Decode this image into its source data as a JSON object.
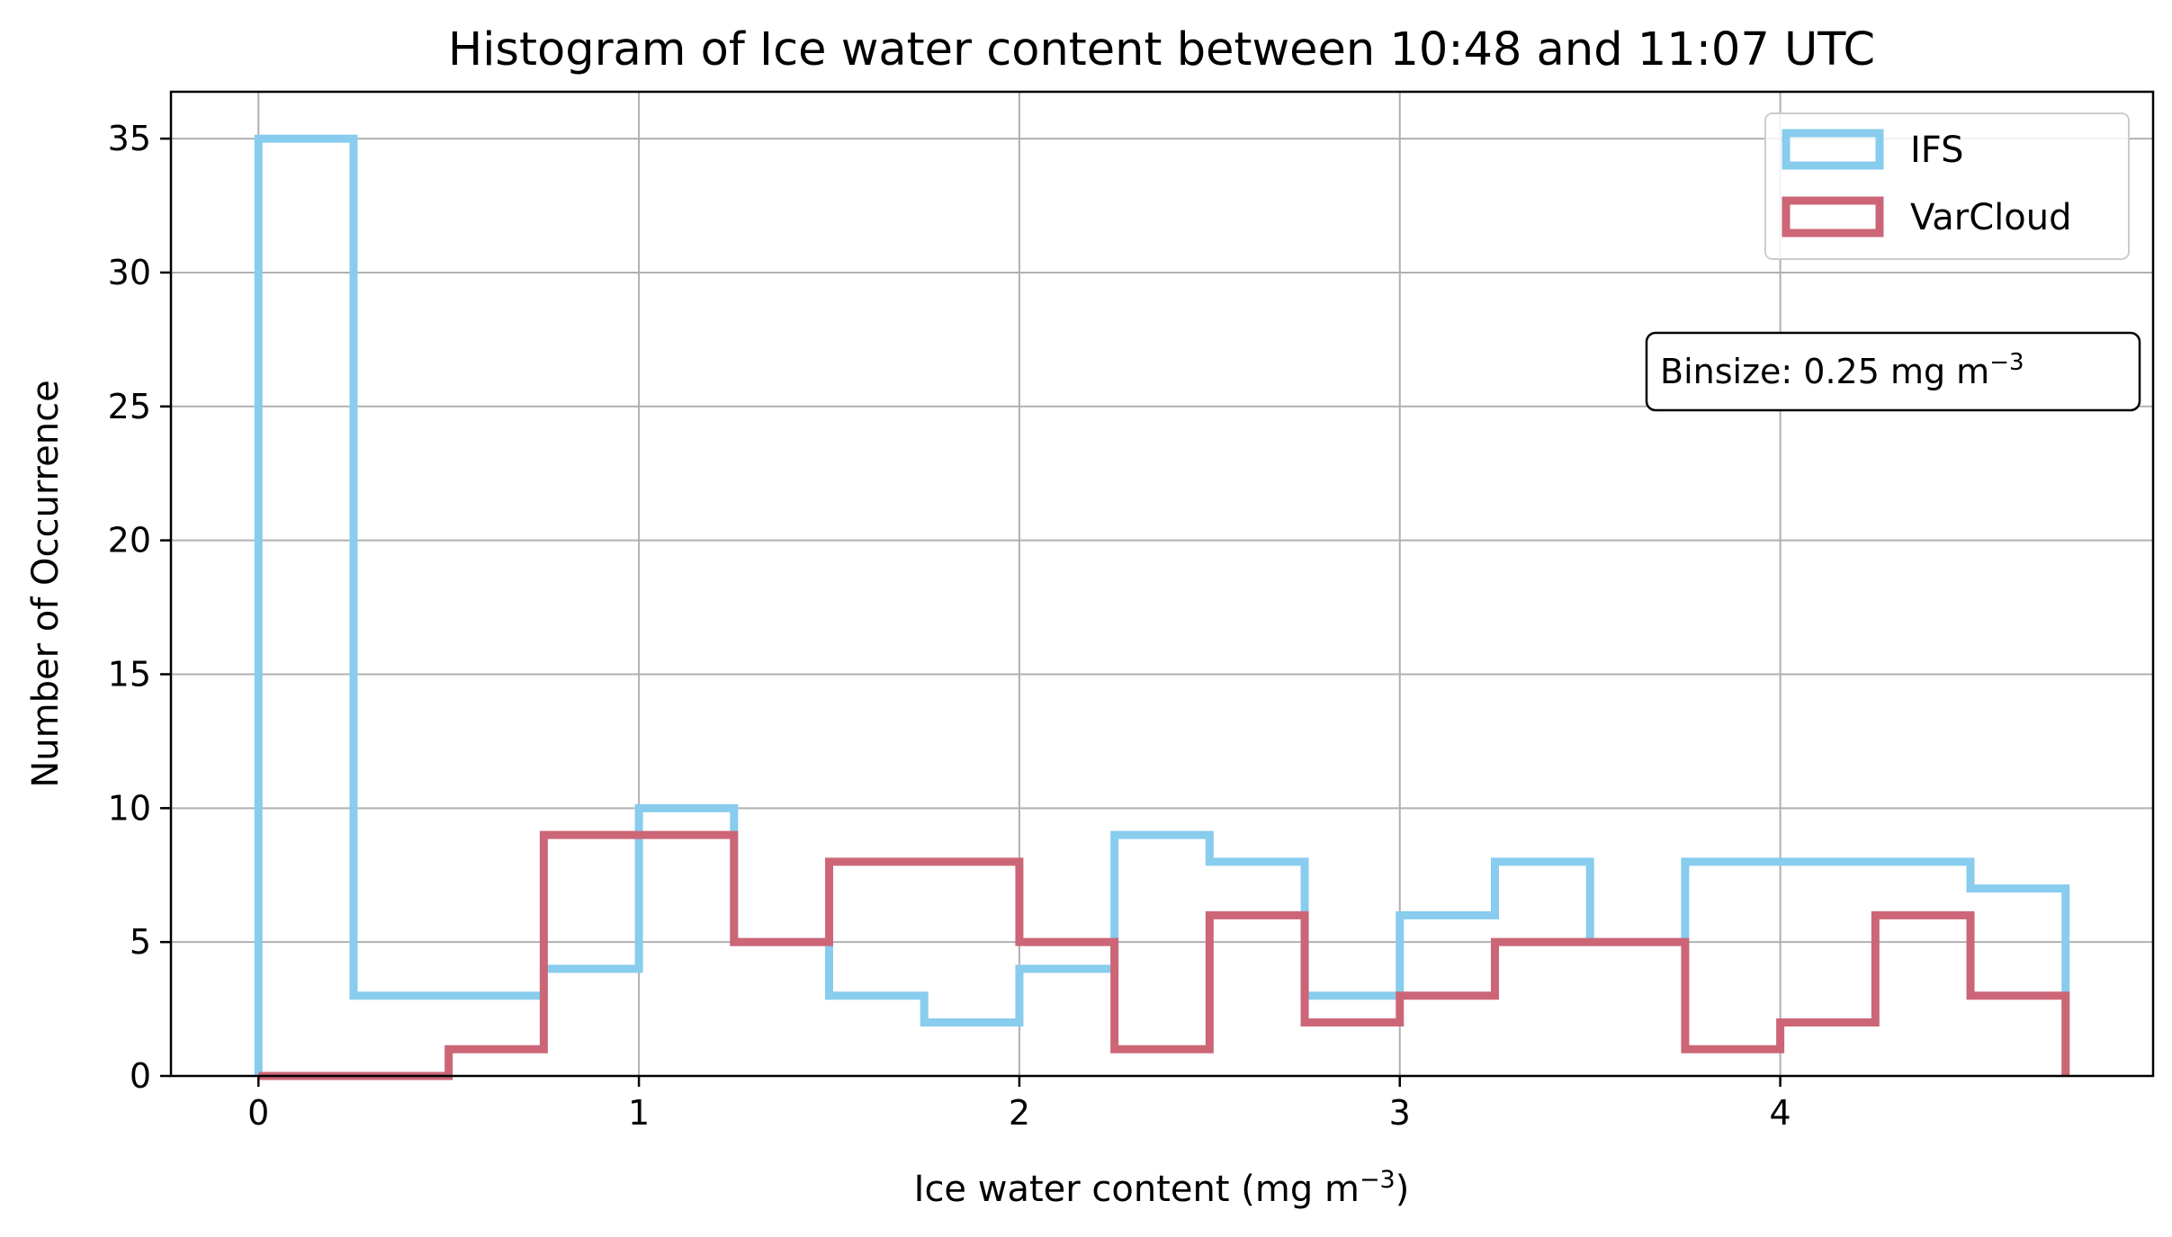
{
  "chart_data": {
    "type": "histogram",
    "title": "Histogram of Ice water content between 10:48 and 11:07 UTC",
    "xlabel": "Ice water content (mg m",
    "xlabel_sup": "−3",
    "xlabel_close": ")",
    "ylabel": "Number of Occurrence",
    "xlim": [
      -0.23,
      4.98
    ],
    "ylim": [
      0,
      36.75
    ],
    "xticks": [
      0,
      1,
      2,
      3,
      4
    ],
    "yticks": [
      0,
      5,
      10,
      15,
      20,
      25,
      30,
      35
    ],
    "grid": true,
    "bin_edges": [
      0,
      0.25,
      0.5,
      0.75,
      1.0,
      1.25,
      1.5,
      1.75,
      2.0,
      2.25,
      2.5,
      2.75,
      3.0,
      3.25,
      3.5,
      3.75,
      4.0,
      4.25,
      4.5,
      4.75
    ],
    "series": [
      {
        "name": "IFS",
        "color": "#88CCEE",
        "values": [
          35,
          3,
          3,
          4,
          10,
          5,
          3,
          2,
          4,
          9,
          8,
          3,
          6,
          8,
          5,
          8,
          8,
          8,
          7
        ]
      },
      {
        "name": "VarCloud",
        "color": "#CC6677",
        "values": [
          0,
          0,
          1,
          9,
          9,
          5,
          8,
          8,
          5,
          1,
          6,
          2,
          3,
          5,
          5,
          1,
          2,
          6,
          3
        ]
      }
    ],
    "legend_position": "top-right",
    "annotation": {
      "text": "Binsize: 0.25 mg m",
      "sup": "−3"
    }
  }
}
